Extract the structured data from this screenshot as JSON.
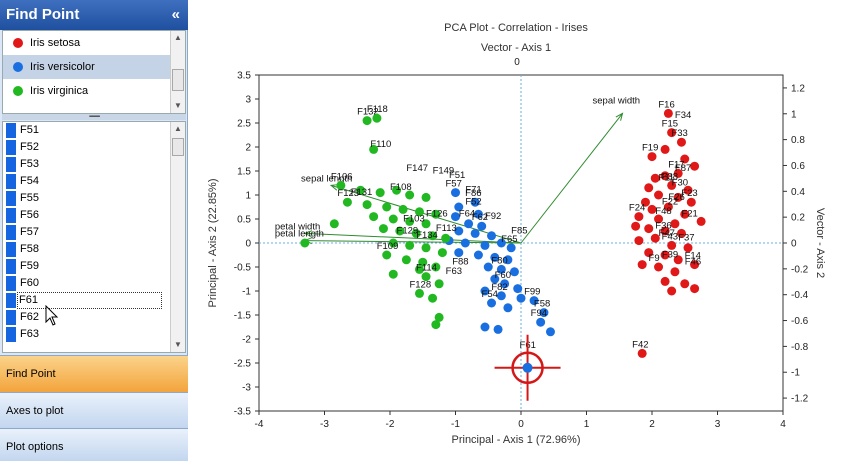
{
  "panel": {
    "title": "Find Point",
    "collapse_glyph": "«",
    "species": [
      {
        "label": "Iris setosa",
        "color": "#e01818",
        "selected": false
      },
      {
        "label": "Iris versicolor",
        "color": "#1a6fe0",
        "selected": true
      },
      {
        "label": "Iris virginica",
        "color": "#22b822",
        "selected": false
      }
    ],
    "points": [
      "F51",
      "F52",
      "F53",
      "F54",
      "F55",
      "F56",
      "F57",
      "F58",
      "F59",
      "F60",
      "F61",
      "F62",
      "F63"
    ],
    "focused_point": "F61",
    "splitter_glyph": "▪▪▪▪▪▪▪▪▪",
    "nav": {
      "find_point": "Find Point",
      "axes_to_plot": "Axes to plot",
      "plot_options": "Plot options"
    }
  },
  "chart_data": {
    "type": "scatter",
    "title": "PCA Plot - Correlation - Irises",
    "top_axis_title": "Vector - Axis 1",
    "right_axis_title": "Vector - Axis 2",
    "xlabel": "Principal - Axis 1 (72.96%)",
    "ylabel": "Principal - Axis 2 (22.85%)",
    "xlim": [
      -4,
      4
    ],
    "ylim": [
      -3.5,
      3.5
    ],
    "xticks": [
      "-4",
      "-3",
      "-2",
      "-1",
      "0",
      "1",
      "2",
      "3",
      "4"
    ],
    "yticks": [
      "3.5",
      "3",
      "2.5",
      "2",
      "1.5",
      "1",
      "0.5",
      "0",
      "-0.5",
      "-1",
      "-1.5",
      "-2",
      "-2.5",
      "-3",
      "-3.5"
    ],
    "right_ticks": [
      "1.2",
      "1",
      "0.8",
      "0.6",
      "0.4",
      "0.2",
      "0",
      "-0.2",
      "-0.4",
      "-0.6",
      "-0.8",
      "-1",
      "-1.2"
    ],
    "top_tick": "0",
    "colors": {
      "setosa": "#e01818",
      "versicolor": "#1a6fe0",
      "virginica": "#22b822",
      "vector": "#2e8b2e",
      "axis_line": "#6aaee0",
      "target": "#d41818"
    },
    "vectors": [
      {
        "name": "sepal width",
        "x": 1.55,
        "y": 2.7
      },
      {
        "name": "sepal length",
        "x": -2.9,
        "y": 1.2
      },
      {
        "name": "petal width",
        "x": -3.3,
        "y": 0.2
      },
      {
        "name": "petal length",
        "x": -3.3,
        "y": 0.05
      }
    ],
    "highlighted_point": {
      "name": "F61",
      "x": 0.1,
      "y": -2.6
    },
    "series": [
      {
        "name": "Iris setosa",
        "points": [
          {
            "x": 2.25,
            "y": 2.7,
            "label": "F16"
          },
          {
            "x": 2.3,
            "y": 2.3,
            "label": "F15"
          },
          {
            "x": 2.45,
            "y": 2.1,
            "label": "F33"
          },
          {
            "x": 2.0,
            "y": 1.8,
            "label": "F19"
          },
          {
            "x": 2.2,
            "y": 1.95
          },
          {
            "x": 2.5,
            "y": 1.75
          },
          {
            "x": 2.65,
            "y": 1.6
          },
          {
            "x": 2.4,
            "y": 1.45,
            "label": "F17"
          },
          {
            "x": 2.2,
            "y": 1.4
          },
          {
            "x": 2.05,
            "y": 1.35
          },
          {
            "x": 1.95,
            "y": 1.15
          },
          {
            "x": 2.3,
            "y": 1.2,
            "label": "F38"
          },
          {
            "x": 2.55,
            "y": 1.1
          },
          {
            "x": 2.1,
            "y": 1.0
          },
          {
            "x": 2.4,
            "y": 0.95
          },
          {
            "x": 2.6,
            "y": 0.85,
            "label": "F23"
          },
          {
            "x": 1.9,
            "y": 0.85
          },
          {
            "x": 2.0,
            "y": 0.7
          },
          {
            "x": 2.25,
            "y": 0.75
          },
          {
            "x": 2.5,
            "y": 0.6
          },
          {
            "x": 2.75,
            "y": 0.45
          },
          {
            "x": 1.8,
            "y": 0.55,
            "label": "F24"
          },
          {
            "x": 2.1,
            "y": 0.5
          },
          {
            "x": 2.35,
            "y": 0.4
          },
          {
            "x": 1.75,
            "y": 0.35
          },
          {
            "x": 1.95,
            "y": 0.3
          },
          {
            "x": 2.2,
            "y": 0.25
          },
          {
            "x": 2.45,
            "y": 0.2
          },
          {
            "x": 1.8,
            "y": 0.05
          },
          {
            "x": 2.05,
            "y": 0.1
          },
          {
            "x": 2.3,
            "y": -0.05,
            "label": "F43"
          },
          {
            "x": 2.55,
            "y": -0.1
          },
          {
            "x": 1.95,
            "y": -0.2
          },
          {
            "x": 2.2,
            "y": -0.25
          },
          {
            "x": 2.4,
            "y": -0.35
          },
          {
            "x": 2.65,
            "y": -0.45,
            "label": "F14"
          },
          {
            "x": 1.85,
            "y": -0.45
          },
          {
            "x": 2.1,
            "y": -0.5,
            "label": "F9"
          },
          {
            "x": 2.35,
            "y": -0.6
          },
          {
            "x": 2.2,
            "y": -0.8
          },
          {
            "x": 2.5,
            "y": -0.85
          },
          {
            "x": 2.65,
            "y": -0.95
          },
          {
            "x": 2.3,
            "y": -1.0
          },
          {
            "x": 1.85,
            "y": -2.3,
            "label": "F42"
          }
        ]
      },
      {
        "name": "Iris versicolor",
        "points": [
          {
            "x": -1.0,
            "y": 1.05,
            "label": "F57"
          },
          {
            "x": -0.7,
            "y": 0.85,
            "label": "F86"
          },
          {
            "x": -0.95,
            "y": 0.75
          },
          {
            "x": -0.65,
            "y": 0.6
          },
          {
            "x": -1.0,
            "y": 0.55
          },
          {
            "x": -0.8,
            "y": 0.4
          },
          {
            "x": -0.6,
            "y": 0.35,
            "label": "F62"
          },
          {
            "x": -0.95,
            "y": 0.25
          },
          {
            "x": -0.7,
            "y": 0.2
          },
          {
            "x": -0.45,
            "y": 0.15
          },
          {
            "x": -1.1,
            "y": 0.05
          },
          {
            "x": -0.85,
            "y": 0.0
          },
          {
            "x": -0.55,
            "y": -0.05
          },
          {
            "x": -0.3,
            "y": 0.0
          },
          {
            "x": -0.15,
            "y": -0.1,
            "label": "F65"
          },
          {
            "x": -0.95,
            "y": -0.2
          },
          {
            "x": -0.65,
            "y": -0.25
          },
          {
            "x": -0.4,
            "y": -0.3
          },
          {
            "x": -0.2,
            "y": -0.35
          },
          {
            "x": -0.5,
            "y": -0.5
          },
          {
            "x": -0.3,
            "y": -0.55,
            "label": "F80"
          },
          {
            "x": -0.1,
            "y": -0.6
          },
          {
            "x": -0.4,
            "y": -0.75
          },
          {
            "x": -0.25,
            "y": -0.85,
            "label": "F60"
          },
          {
            "x": -0.05,
            "y": -0.95
          },
          {
            "x": -0.55,
            "y": -1.0
          },
          {
            "x": -0.3,
            "y": -1.1,
            "label": "F82"
          },
          {
            "x": 0.0,
            "y": -1.15
          },
          {
            "x": -0.45,
            "y": -1.25,
            "label": "F54"
          },
          {
            "x": -0.2,
            "y": -1.35
          },
          {
            "x": 0.2,
            "y": -1.2,
            "label": "F99"
          },
          {
            "x": 0.35,
            "y": -1.45,
            "label": "F58"
          },
          {
            "x": 0.3,
            "y": -1.65,
            "label": "F94"
          },
          {
            "x": 0.45,
            "y": -1.85
          },
          {
            "x": -0.55,
            "y": -1.75
          },
          {
            "x": -0.35,
            "y": -1.8
          }
        ]
      },
      {
        "name": "Iris virginica",
        "points": [
          {
            "x": -2.35,
            "y": 2.55,
            "label": "F132"
          },
          {
            "x": -2.2,
            "y": 2.6,
            "label": "F118"
          },
          {
            "x": -2.25,
            "y": 1.95
          },
          {
            "x": -2.75,
            "y": 1.2,
            "label": "F106"
          },
          {
            "x": -2.45,
            "y": 1.1
          },
          {
            "x": -2.15,
            "y": 1.05
          },
          {
            "x": -1.9,
            "y": 1.1
          },
          {
            "x": -1.7,
            "y": 1.0
          },
          {
            "x": -1.45,
            "y": 0.95
          },
          {
            "x": -2.65,
            "y": 0.85,
            "label": "F123"
          },
          {
            "x": -2.35,
            "y": 0.8
          },
          {
            "x": -2.05,
            "y": 0.75
          },
          {
            "x": -1.8,
            "y": 0.7
          },
          {
            "x": -1.55,
            "y": 0.65
          },
          {
            "x": -1.3,
            "y": 0.6
          },
          {
            "x": -2.25,
            "y": 0.55
          },
          {
            "x": -1.95,
            "y": 0.5
          },
          {
            "x": -1.7,
            "y": 0.45
          },
          {
            "x": -1.45,
            "y": 0.4
          },
          {
            "x": -2.85,
            "y": 0.4
          },
          {
            "x": -2.1,
            "y": 0.3
          },
          {
            "x": -1.85,
            "y": 0.25
          },
          {
            "x": -1.6,
            "y": 0.2
          },
          {
            "x": -1.35,
            "y": 0.15
          },
          {
            "x": -1.15,
            "y": 0.1
          },
          {
            "x": -3.3,
            "y": 0.0
          },
          {
            "x": -1.95,
            "y": 0.0
          },
          {
            "x": -1.7,
            "y": -0.05
          },
          {
            "x": -1.45,
            "y": -0.1
          },
          {
            "x": -1.2,
            "y": -0.2
          },
          {
            "x": -2.05,
            "y": -0.25,
            "label": "F109"
          },
          {
            "x": -1.75,
            "y": -0.35
          },
          {
            "x": -1.5,
            "y": -0.4
          },
          {
            "x": -1.3,
            "y": -0.5
          },
          {
            "x": -1.55,
            "y": -0.55
          },
          {
            "x": -1.95,
            "y": -0.65
          },
          {
            "x": -1.45,
            "y": -0.7,
            "label": "F114"
          },
          {
            "x": -1.25,
            "y": -0.85
          },
          {
            "x": -1.55,
            "y": -1.05,
            "label": "F128"
          },
          {
            "x": -1.35,
            "y": -1.15
          },
          {
            "x": -1.25,
            "y": -1.55
          },
          {
            "x": -1.3,
            "y": -1.7
          }
        ]
      }
    ],
    "extra_labels": [
      "F110",
      "F131",
      "F108",
      "F147",
      "F149",
      "F51",
      "F71",
      "F52",
      "F64",
      "F92",
      "F103",
      "F126",
      "F129",
      "F134",
      "F113",
      "F88",
      "F63",
      "F85",
      "F11",
      "F87",
      "F22",
      "F21",
      "F36",
      "F37",
      "F39",
      "F46",
      "F48",
      "F30",
      "F26",
      "F47",
      "F34"
    ]
  }
}
